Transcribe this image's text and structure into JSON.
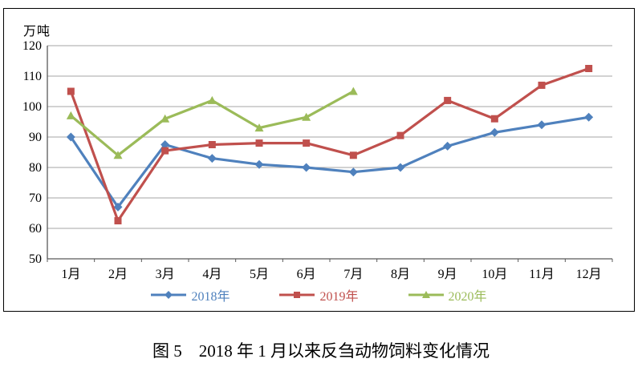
{
  "figure": {
    "caption": "图 5　2018 年 1 月以来反刍动物饲料变化情况"
  },
  "chart_data": {
    "type": "line",
    "title": "",
    "xlabel": "",
    "ylabel": "万吨",
    "ylim": [
      50,
      120
    ],
    "ytick_step": 10,
    "yticks": [
      50,
      60,
      70,
      80,
      90,
      100,
      110,
      120
    ],
    "grid": "horizontal",
    "legend_position": "bottom",
    "categories": [
      "1月",
      "2月",
      "3月",
      "4月",
      "5月",
      "6月",
      "7月",
      "8月",
      "9月",
      "10月",
      "11月",
      "12月"
    ],
    "series": [
      {
        "name": "2018年",
        "marker": "diamond",
        "color": "#4F81BD",
        "values": [
          90,
          67,
          87.5,
          83,
          81,
          80,
          78.5,
          80,
          87,
          91.5,
          94,
          96.5
        ]
      },
      {
        "name": "2019年",
        "marker": "square",
        "color": "#C0504D",
        "values": [
          105,
          62.5,
          85.5,
          87.5,
          88,
          88,
          84,
          90.5,
          102,
          96,
          107,
          112.5
        ]
      },
      {
        "name": "2020年",
        "marker": "triangle",
        "color": "#9BBB59",
        "values": [
          97,
          84,
          96,
          102,
          93,
          96.5,
          105,
          null,
          null,
          null,
          null,
          null
        ]
      }
    ],
    "colors": {
      "gridline": "#A6A6A6",
      "axis": "#595959",
      "text": "#000000"
    }
  }
}
